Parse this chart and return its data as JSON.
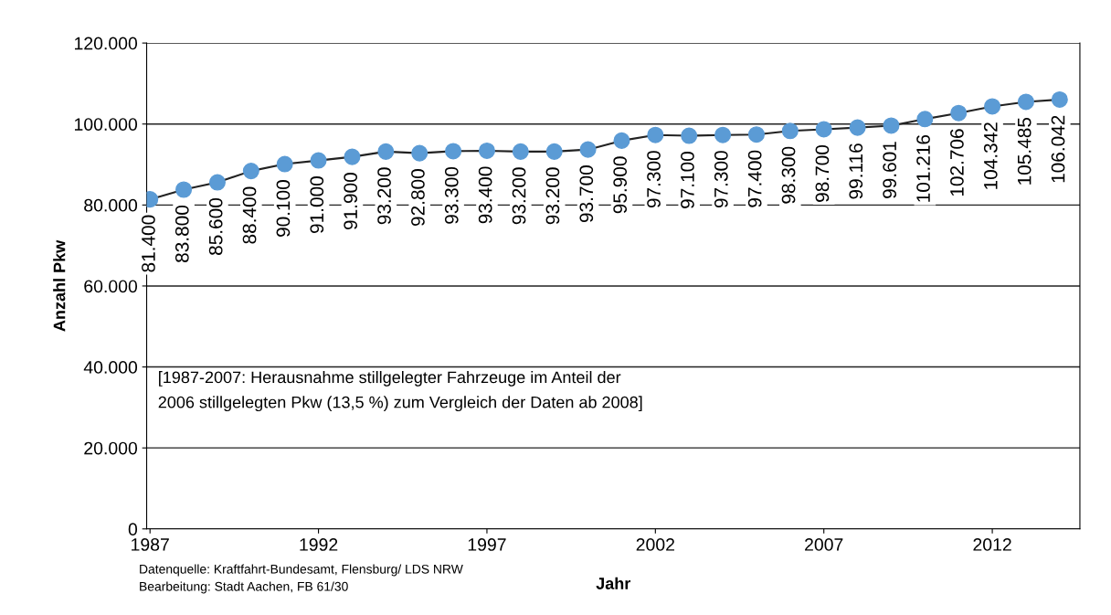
{
  "chart_data": {
    "type": "line",
    "xlabel": "Jahr",
    "ylabel": "Anzahl Pkw",
    "x": [
      1987,
      1988,
      1989,
      1990,
      1991,
      1992,
      1993,
      1994,
      1995,
      1996,
      1997,
      1998,
      1999,
      2000,
      2001,
      2002,
      2003,
      2004,
      2005,
      2006,
      2007,
      2008,
      2009,
      2010,
      2011,
      2012,
      2013,
      2014
    ],
    "series": [
      {
        "color": "#5b9bd5",
        "values": [
          81400,
          83800,
          85600,
          88400,
          90100,
          91000,
          91900,
          93200,
          92800,
          93300,
          93400,
          93200,
          93200,
          93700,
          95900,
          97300,
          97100,
          97300,
          97400,
          98300,
          98700,
          99116,
          99601,
          101216,
          102706,
          104342,
          105485,
          106042
        ],
        "value_labels": [
          "81.400",
          "83.800",
          "85.600",
          "88.400",
          "90.100",
          "91.000",
          "91.900",
          "93.200",
          "92.800",
          "93.300",
          "93.400",
          "93.200",
          "93.200",
          "93.700",
          "95.900",
          "97.300",
          "97.100",
          "97.300",
          "97.400",
          "98.300",
          "98.700",
          "99.116",
          "99.601",
          "101.216",
          "102.706",
          "104.342",
          "105.485",
          "106.042"
        ]
      }
    ],
    "xlim": [
      1986.9,
      2014.6
    ],
    "xticks": [
      1987,
      1992,
      1997,
      2002,
      2007,
      2012
    ],
    "ylim": [
      0,
      120000
    ],
    "yticks": [
      {
        "value": 0,
        "label": "0"
      },
      {
        "value": 20000,
        "label": "20.000"
      },
      {
        "value": 40000,
        "label": "40.000"
      },
      {
        "value": 60000,
        "label": "60.000"
      },
      {
        "value": 80000,
        "label": "80.000"
      },
      {
        "value": 100000,
        "label": "100.000"
      },
      {
        "value": 120000,
        "label": "120.000"
      }
    ],
    "grid": "y",
    "legend": false,
    "marker": "circle",
    "line_style": "solid",
    "annotations": [
      "[1987-2007: Herausnahme stillgelegter Fahrzeuge im Anteil der\n2006 stillgelegten Pkw (13,5 %) zum Vergleich der Daten ab 2008]",
      "Datenquelle: Kraftfahrt-Bundesamt, Flensburg/ LDS NRW\nBearbeitung: Stadt Aachen, FB 61/30"
    ]
  }
}
